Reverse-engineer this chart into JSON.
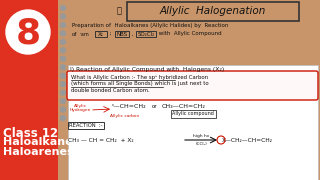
{
  "bg_color": "#C8956A",
  "notebook_bg": "#FFFEF0",
  "red_bg": "#E03020",
  "number": "8",
  "title_box": "Allylic  Halogenation",
  "line1": "Preparation of  Haloalkanes (Allylic Halides) by  Reaction",
  "line2a": "of",
  "line2b": "X₂",
  "line2c": ";",
  "line2d": "NBS",
  "line2e": ",",
  "line2f": "SO₂Cl₂",
  "line2g": "with  Allylic Compound",
  "section_title": "I) Reaction of Allylic Compound with  Halogens (X₂)",
  "box_line1": "What is Allylic Carbon :- The sp³ hybridized Carbon",
  "box_line2": "(which forms all Single Bonds) which is just next to",
  "box_line3": "double bonded Carbon atom.",
  "bottom_label_line1": "Class 12",
  "bottom_label_line2": "Haloalkane,",
  "bottom_label_line3": "Haloarenes",
  "spiral_color": "#999999",
  "text_dark": "#111111",
  "text_red": "#CC1100",
  "text_blue": "#223388",
  "inner_white": "#FFFFFF",
  "beige": "#D4B483"
}
